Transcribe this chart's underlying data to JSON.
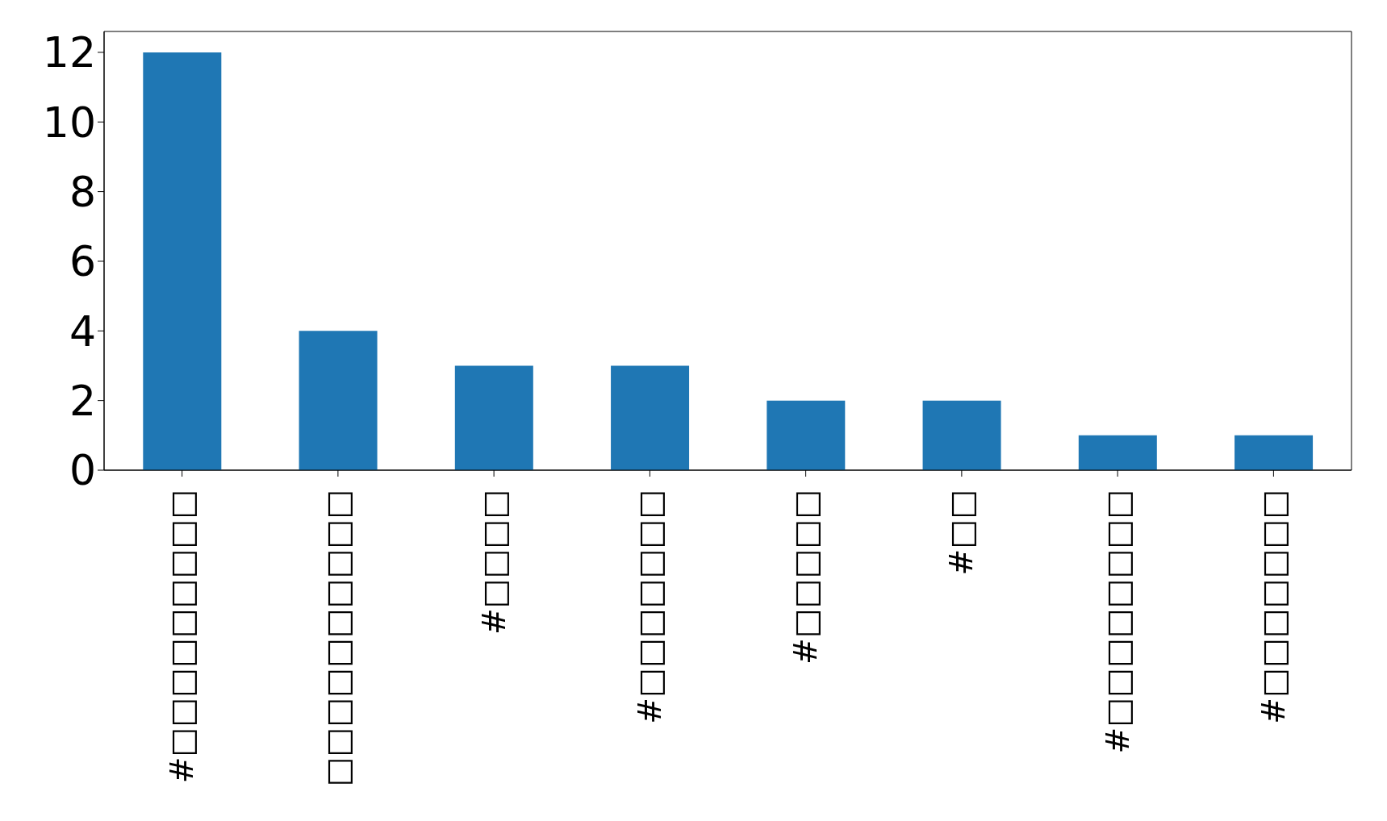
{
  "chart_data": {
    "type": "bar",
    "categories": [
      "#□□□□□□□□□",
      "□□□□□□□□□□",
      "#□□□□",
      "#□□□□□□□",
      "#□□□□□",
      "#□□",
      "#□□□□□□□□",
      "#□□□□□□□"
    ],
    "values": [
      12,
      4,
      3,
      3,
      2,
      2,
      1,
      1
    ],
    "color": "#1f77b4",
    "ylim": [
      0,
      12.6
    ],
    "yticks": [
      0,
      2,
      4,
      6,
      8,
      10,
      12
    ],
    "grid": false
  }
}
